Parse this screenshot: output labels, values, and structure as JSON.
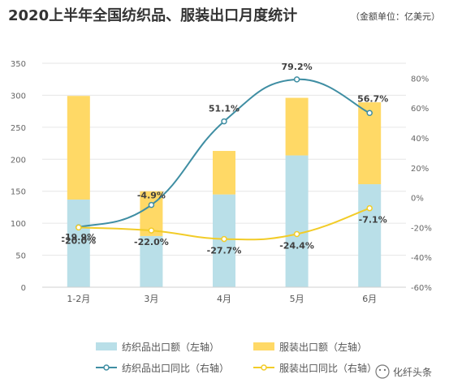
{
  "header": {
    "title": "2020上半年全国纺织品、服装出口月度统计",
    "unit": "（金额单位：亿美元）"
  },
  "watermark": "化纤头条",
  "colors": {
    "textile_bar": "#b9dfe8",
    "apparel_bar": "#ffd966",
    "textile_line": "#3f8ea3",
    "apparel_line": "#f2cc28",
    "grid": "#e6e6e6"
  },
  "chart_data": {
    "type": "bar",
    "stacked": true,
    "categories": [
      "1-2月",
      "3月",
      "4月",
      "5月",
      "6月"
    ],
    "left_axis": {
      "ylim": [
        0,
        350
      ],
      "ticks": [
        "0",
        "50",
        "100",
        "150",
        "200",
        "250",
        "300",
        "350"
      ]
    },
    "right_axis": {
      "ylim": [
        -60,
        90
      ],
      "ticks": [
        "-60%",
        "-40%",
        "-20%",
        "0%",
        "20%",
        "40%",
        "60%",
        "80%"
      ]
    },
    "series": [
      {
        "name": "纺织品出口额（左轴）",
        "type": "bar",
        "axis": "left",
        "values": [
          137,
          80,
          145,
          206,
          161
        ]
      },
      {
        "name": "服装出口额（左轴）",
        "type": "bar",
        "axis": "left",
        "values": [
          162,
          70,
          68,
          90,
          128
        ]
      },
      {
        "name": "纺织品出口同比（右轴）",
        "type": "line",
        "axis": "right",
        "values": [
          -19.9,
          -4.9,
          51.1,
          79.2,
          56.7
        ],
        "labels": [
          "-19.9%",
          "-4.9%",
          "51.1%",
          "79.2%",
          "56.7%"
        ]
      },
      {
        "name": "服装出口同比（右轴）",
        "type": "line",
        "axis": "right",
        "values": [
          -20.0,
          -22.0,
          -27.7,
          -24.4,
          -7.1
        ],
        "labels": [
          "-20.0%",
          "-22.0%",
          "-27.7%",
          "-24.4%",
          "-7.1%"
        ]
      }
    ],
    "legend_position": "bottom",
    "grid": true
  }
}
